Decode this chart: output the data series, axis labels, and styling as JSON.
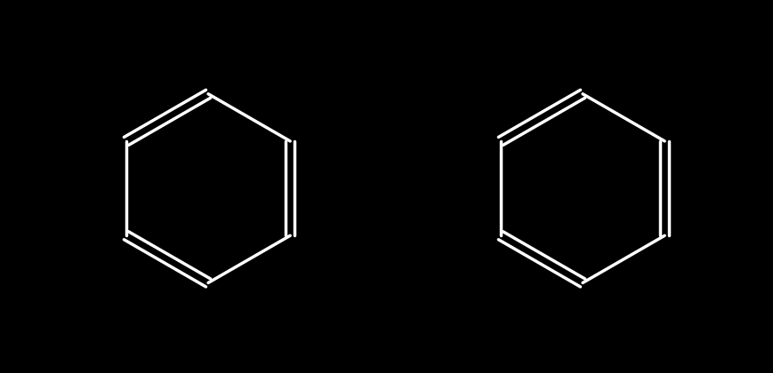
{
  "background_color": "#000000",
  "bond_color": "#ffffff",
  "bond_width": 2.5,
  "N_color": "#4444ff",
  "F_color": "#228B22",
  "O_color": "#ff2222",
  "Cl_color": "#22cc22",
  "H_color": "#ffffff",
  "font_size_atom": 16,
  "fig_width": 8.7,
  "fig_height": 4.2
}
